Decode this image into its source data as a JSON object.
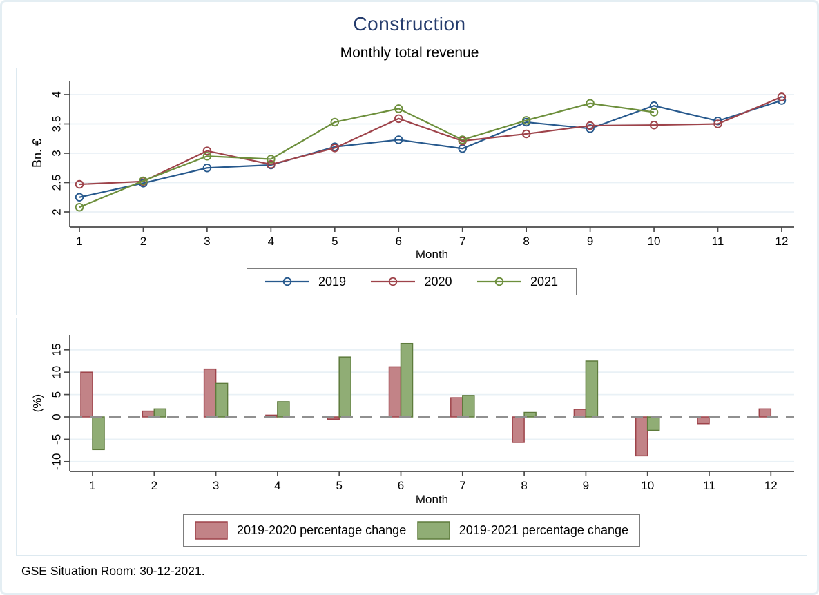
{
  "title": "Construction",
  "subtitle": "Monthly total revenue",
  "footer": "GSE Situation Room: 30-12-2021.",
  "title_color": "#253c6d",
  "chart_data": [
    {
      "type": "line",
      "xlabel": "Month",
      "ylabel": "Bn. €",
      "x": [
        1,
        2,
        3,
        4,
        5,
        6,
        7,
        8,
        9,
        10,
        11,
        12
      ],
      "yticks": [
        2,
        2.5,
        3,
        3.5,
        4
      ],
      "ylim": [
        1.75,
        4.25
      ],
      "grid": "on",
      "legend_position": "bottom",
      "marker": "circle_hollow",
      "series": [
        {
          "name": "2019",
          "color": "#27598d",
          "values": [
            2.25,
            2.49,
            2.75,
            2.8,
            3.11,
            3.23,
            3.08,
            3.53,
            3.42,
            3.81,
            3.55,
            3.9
          ]
        },
        {
          "name": "2020",
          "color": "#9e434a",
          "values": [
            2.47,
            2.52,
            3.04,
            2.81,
            3.09,
            3.59,
            3.21,
            3.33,
            3.47,
            3.48,
            3.5,
            3.96
          ]
        },
        {
          "name": "2021",
          "color": "#6d8f3c",
          "values": [
            2.08,
            2.53,
            2.95,
            2.9,
            3.53,
            3.76,
            3.23,
            3.56,
            3.85,
            3.7,
            null,
            null
          ]
        }
      ]
    },
    {
      "type": "bar",
      "xlabel": "Month",
      "ylabel": "(%)",
      "categories": [
        1,
        2,
        3,
        4,
        5,
        6,
        7,
        8,
        9,
        10,
        11,
        12
      ],
      "yticks": [
        -10,
        -5,
        0,
        5,
        10,
        15
      ],
      "ylim": [
        -12,
        18
      ],
      "grid": "on",
      "zero_line": "dashed-gray",
      "legend_position": "bottom",
      "series": [
        {
          "name": "2019-2020 percentage change",
          "fill": "#c28387",
          "border": "#9e434a",
          "values": [
            10.0,
            1.3,
            10.7,
            0.4,
            -0.5,
            11.2,
            4.3,
            -5.7,
            1.7,
            -8.7,
            -1.5,
            1.8
          ]
        },
        {
          "name": "2019-2021 percentage change",
          "fill": "#90ad75",
          "border": "#5e7b3c",
          "values": [
            -7.3,
            1.8,
            7.5,
            3.4,
            13.4,
            16.4,
            4.8,
            1.0,
            12.5,
            -3.0,
            null,
            null
          ]
        }
      ]
    }
  ]
}
